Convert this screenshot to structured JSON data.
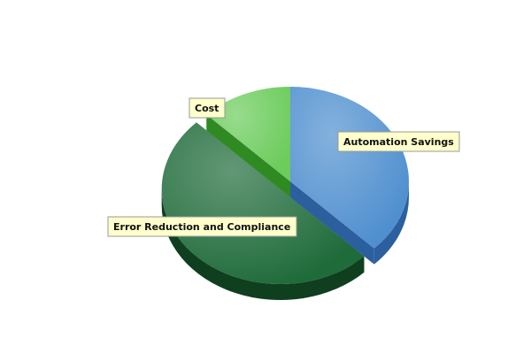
{
  "chart_data": {
    "type": "pie",
    "style": "3d-exploded",
    "slices": [
      {
        "label": "Automation Savings",
        "value": 37.5,
        "color": "#4f8fcf",
        "side_color": "#2c5f9e"
      },
      {
        "label": "Error Reduction and Compliance",
        "value": 50.0,
        "color": "#1f6b3a",
        "side_color": "#0f3f1f",
        "exploded": true
      },
      {
        "label": "Cost",
        "value": 12.5,
        "color": "#6ccc5c",
        "side_color": "#2f8a22"
      }
    ],
    "label_box_color": "#ffffcc",
    "label_border_color": "#999999",
    "title": "",
    "legend": "none"
  }
}
